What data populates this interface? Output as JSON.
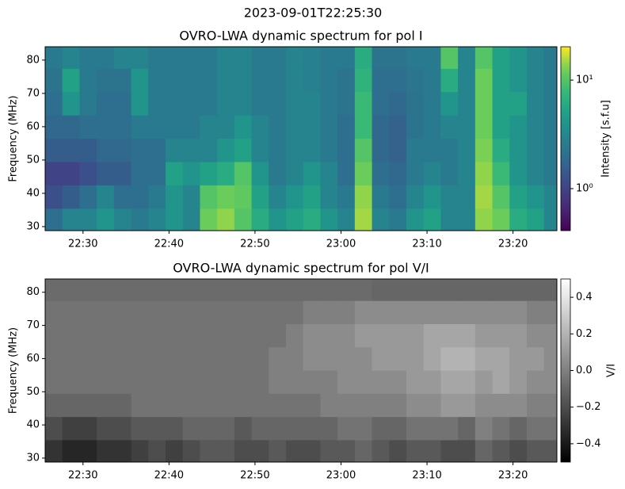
{
  "title": "2023-09-01T22:25:30",
  "chart_data": [
    {
      "type": "heatmap",
      "title": "OVRO-LWA dynamic spectrum for pol I",
      "ylabel": "Frequency (MHz)",
      "x": [
        26.6,
        28.6,
        30.6,
        32.6,
        34.6,
        36.6,
        38.6,
        40.6,
        42.6,
        44.6,
        46.6,
        48.6,
        50.6,
        52.6,
        54.6,
        56.6,
        58.6,
        60.6,
        62.6,
        64.6,
        66.6,
        68.6,
        70.6,
        72.6,
        74.6,
        76.6,
        78.6,
        80.6,
        82.6,
        84.6
      ],
      "y": [
        32,
        39,
        46,
        53,
        60,
        67,
        74,
        81
      ],
      "z": [
        [
          2,
          3,
          3,
          4,
          3,
          2.5,
          3,
          4,
          3,
          12,
          14,
          10,
          6,
          4,
          5,
          6,
          4,
          3,
          15,
          3,
          2.5,
          4,
          5,
          3,
          3,
          14,
          12,
          6,
          5,
          3
        ],
        [
          1.2,
          1.5,
          2,
          3,
          2,
          2,
          2.5,
          4,
          3,
          10,
          12,
          11,
          5,
          3,
          4,
          5,
          3,
          2.5,
          14,
          2.5,
          2,
          3,
          4,
          3,
          3,
          15,
          10,
          5,
          4,
          3
        ],
        [
          1,
          1,
          1.2,
          1.5,
          1.5,
          2,
          2,
          5,
          4,
          5,
          6,
          10,
          4,
          2.5,
          3,
          4,
          3,
          2,
          12,
          2,
          1.8,
          2.5,
          3,
          2.5,
          3,
          14,
          8,
          4,
          3,
          2.5
        ],
        [
          1.5,
          1.5,
          1.5,
          1.8,
          1.8,
          2,
          2,
          3,
          3,
          3,
          4,
          5,
          3,
          2.5,
          3,
          3,
          2.5,
          2,
          10,
          1.8,
          1.6,
          2.5,
          2.5,
          2.5,
          3,
          13,
          6,
          4,
          3,
          2.5
        ],
        [
          1.8,
          1.8,
          2,
          2,
          2,
          2.5,
          2.5,
          2.5,
          2.5,
          3,
          3,
          4,
          3,
          2.5,
          3,
          3,
          2.5,
          2,
          8,
          1.8,
          1.6,
          2.2,
          2.5,
          3,
          3,
          12,
          5,
          4,
          3,
          2.5
        ],
        [
          2,
          4,
          2.5,
          2,
          2,
          4,
          2.5,
          2.5,
          2.5,
          2.5,
          3,
          3,
          2.5,
          2.5,
          3,
          3,
          2.5,
          2.2,
          8,
          2,
          1.8,
          2.2,
          2.5,
          4,
          3,
          12,
          5,
          5,
          3,
          2.5
        ],
        [
          2.2,
          5,
          2.5,
          2.2,
          2.2,
          4,
          2.5,
          2.5,
          2.5,
          2.5,
          3,
          3,
          2.5,
          2.5,
          3,
          2.8,
          2.5,
          2.2,
          7,
          2,
          2,
          2.3,
          2.5,
          6,
          3,
          12,
          5,
          4,
          3,
          2.5
        ],
        [
          2.5,
          3,
          2.5,
          2.5,
          3,
          3,
          2.5,
          2.5,
          2.5,
          2.5,
          3,
          3,
          2.5,
          2.5,
          3,
          2.8,
          2.5,
          2.5,
          6,
          2.2,
          2.2,
          2.5,
          2.5,
          10,
          3,
          10,
          5,
          4,
          3,
          2.5
        ]
      ],
      "xlim": [
        25.6,
        85.1
      ],
      "xticks": [
        {
          "value": 30,
          "label": "22:30"
        },
        {
          "value": 40,
          "label": "22:40"
        },
        {
          "value": 50,
          "label": "22:50"
        },
        {
          "value": 60,
          "label": "23:00"
        },
        {
          "value": 70,
          "label": "23:10"
        },
        {
          "value": 80,
          "label": "23:20"
        }
      ],
      "ylim": [
        28.8,
        84
      ],
      "yticks": [
        30,
        40,
        50,
        60,
        70,
        80
      ],
      "colorbar": {
        "label": "Intensity [s.f.u]",
        "colormap": "viridis",
        "scale": "log",
        "clim": [
          0.41,
          20.3
        ],
        "ticks": [
          {
            "value": 1,
            "label": "10⁰"
          },
          {
            "value": 10,
            "label": "10¹"
          }
        ]
      }
    },
    {
      "type": "heatmap",
      "title": "OVRO-LWA dynamic spectrum for pol V/I",
      "ylabel": "Frequency (MHz)",
      "x": [
        26.6,
        28.6,
        30.6,
        32.6,
        34.6,
        36.6,
        38.6,
        40.6,
        42.6,
        44.6,
        46.6,
        48.6,
        50.6,
        52.6,
        54.6,
        56.6,
        58.6,
        60.6,
        62.6,
        64.6,
        66.6,
        68.6,
        70.6,
        72.6,
        74.6,
        76.6,
        78.6,
        80.6,
        82.6,
        84.6
      ],
      "y": [
        32,
        39,
        46,
        53,
        60,
        67,
        74,
        81
      ],
      "z": [
        [
          -0.3,
          -0.35,
          -0.35,
          -0.3,
          -0.3,
          -0.25,
          -0.2,
          -0.25,
          -0.2,
          -0.15,
          -0.15,
          -0.2,
          -0.2,
          -0.15,
          -0.2,
          -0.2,
          -0.15,
          -0.15,
          -0.1,
          -0.15,
          -0.2,
          -0.15,
          -0.15,
          -0.2,
          -0.2,
          -0.1,
          -0.15,
          -0.2,
          -0.15,
          -0.15
        ],
        [
          -0.2,
          -0.25,
          -0.25,
          -0.2,
          -0.2,
          -0.15,
          -0.15,
          -0.15,
          -0.1,
          -0.1,
          -0.1,
          -0.15,
          -0.1,
          -0.1,
          -0.1,
          -0.1,
          -0.1,
          -0.05,
          -0.05,
          -0.1,
          -0.1,
          -0.05,
          -0.05,
          -0.05,
          -0.1,
          0,
          -0.05,
          -0.1,
          -0.05,
          -0.05
        ],
        [
          -0.1,
          -0.1,
          -0.1,
          -0.1,
          -0.1,
          -0.05,
          -0.05,
          -0.05,
          -0.05,
          -0.05,
          -0.05,
          -0.05,
          -0.05,
          -0.05,
          -0.05,
          -0.05,
          0,
          0,
          0,
          0,
          0,
          0.05,
          0.05,
          0.1,
          0.1,
          0.05,
          0.05,
          0.05,
          0,
          0
        ],
        [
          -0.05,
          -0.05,
          -0.05,
          -0.05,
          -0.05,
          -0.05,
          -0.05,
          -0.05,
          -0.05,
          -0.05,
          -0.05,
          -0.05,
          -0.05,
          0,
          0,
          0,
          0,
          0.05,
          0.05,
          0.05,
          0.05,
          0.1,
          0.1,
          0.15,
          0.15,
          0.1,
          0.15,
          0.1,
          0.05,
          0.05
        ],
        [
          -0.05,
          -0.05,
          -0.05,
          -0.05,
          -0.05,
          -0.05,
          -0.05,
          -0.05,
          -0.05,
          -0.05,
          -0.05,
          -0.05,
          -0.05,
          0,
          0,
          0.05,
          0.05,
          0.05,
          0.05,
          0.1,
          0.1,
          0.1,
          0.15,
          0.2,
          0.2,
          0.15,
          0.15,
          0.1,
          0.1,
          0.05
        ],
        [
          -0.05,
          -0.05,
          -0.05,
          -0.05,
          -0.05,
          -0.05,
          -0.05,
          -0.05,
          -0.05,
          -0.05,
          -0.05,
          -0.05,
          -0.05,
          -0.05,
          0,
          0.05,
          0.05,
          0.05,
          0.1,
          0.1,
          0.1,
          0.1,
          0.15,
          0.15,
          0.15,
          0.1,
          0.1,
          0.1,
          0.05,
          0.05
        ],
        [
          -0.05,
          -0.05,
          -0.05,
          -0.05,
          -0.05,
          -0.05,
          -0.05,
          -0.05,
          -0.05,
          -0.05,
          -0.05,
          -0.05,
          -0.05,
          -0.05,
          -0.05,
          0,
          0,
          0,
          0.05,
          0.05,
          0.05,
          0.05,
          0.05,
          0.05,
          0.05,
          0.05,
          0.05,
          0.05,
          0,
          0
        ],
        [
          -0.08,
          -0.08,
          -0.08,
          -0.08,
          -0.08,
          -0.08,
          -0.08,
          -0.08,
          -0.08,
          -0.08,
          -0.08,
          -0.08,
          -0.08,
          -0.08,
          -0.08,
          -0.08,
          -0.08,
          -0.08,
          -0.08,
          -0.1,
          -0.1,
          -0.1,
          -0.1,
          -0.1,
          -0.1,
          -0.1,
          -0.1,
          -0.1,
          -0.1,
          -0.1
        ]
      ],
      "xlim": [
        25.6,
        85.1
      ],
      "xticks": [
        {
          "value": 30,
          "label": "22:30"
        },
        {
          "value": 40,
          "label": "22:40"
        },
        {
          "value": 50,
          "label": "22:50"
        },
        {
          "value": 60,
          "label": "23:00"
        },
        {
          "value": 70,
          "label": "23:10"
        },
        {
          "value": 80,
          "label": "23:20"
        }
      ],
      "ylim": [
        28.8,
        84
      ],
      "yticks": [
        30,
        40,
        50,
        60,
        70,
        80
      ],
      "colorbar": {
        "label": "V/I",
        "colormap": "gray",
        "scale": "linear",
        "clim": [
          -0.5,
          0.5
        ],
        "ticks": [
          0.4,
          0.2,
          {
            "value": 0,
            "label": "0.0"
          },
          {
            "value": -0.2,
            "label": "−0.2"
          },
          {
            "value": -0.4,
            "label": "−0.4"
          }
        ]
      }
    }
  ]
}
